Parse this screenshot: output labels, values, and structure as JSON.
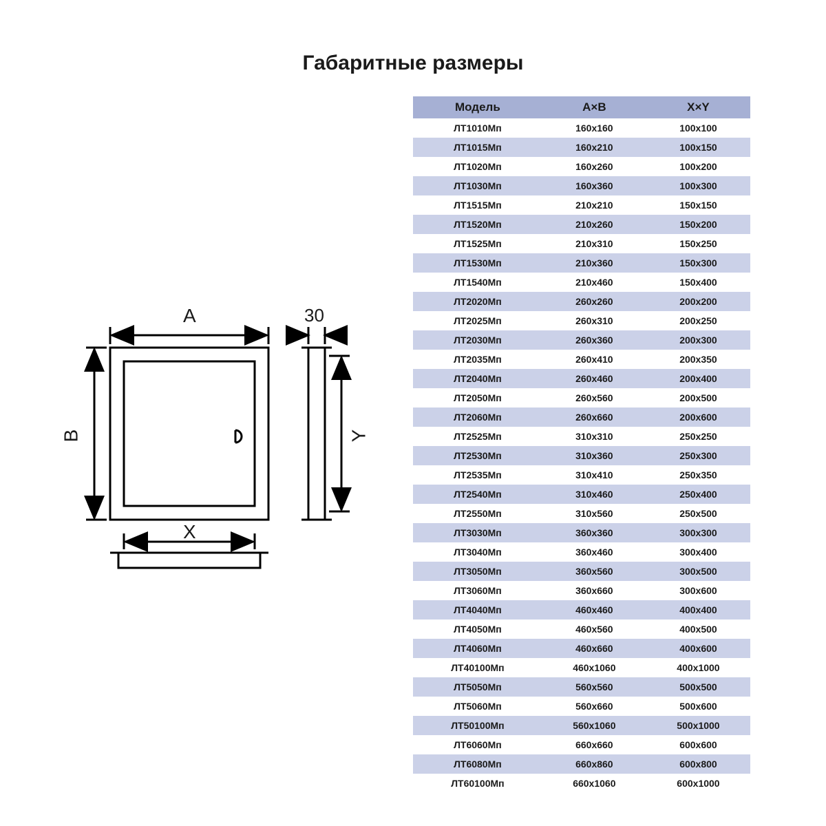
{
  "title": "Габаритные размеры",
  "colors": {
    "header_bg": "#a6b0d4",
    "alt_row_bg": "#cbd1e8",
    "text": "#1a1a1a",
    "stroke": "#000000"
  },
  "table": {
    "columns": [
      "Модель",
      "A×B",
      "X×Y"
    ],
    "rows": [
      [
        "ЛТ1010Мп",
        "160x160",
        "100x100"
      ],
      [
        "ЛТ1015Мп",
        "160x210",
        "100x150"
      ],
      [
        "ЛТ1020Мп",
        "160x260",
        "100x200"
      ],
      [
        "ЛТ1030Мп",
        "160x360",
        "100x300"
      ],
      [
        "ЛТ1515Мп",
        "210x210",
        "150x150"
      ],
      [
        "ЛТ1520Мп",
        "210x260",
        "150x200"
      ],
      [
        "ЛТ1525Мп",
        "210x310",
        "150x250"
      ],
      [
        "ЛТ1530Мп",
        "210x360",
        "150x300"
      ],
      [
        "ЛТ1540Мп",
        "210x460",
        "150x400"
      ],
      [
        "ЛТ2020Мп",
        "260x260",
        "200x200"
      ],
      [
        "ЛТ2025Мп",
        "260x310",
        "200x250"
      ],
      [
        "ЛТ2030Мп",
        "260x360",
        "200x300"
      ],
      [
        "ЛТ2035Мп",
        "260x410",
        "200x350"
      ],
      [
        "ЛТ2040Мп",
        "260x460",
        "200x400"
      ],
      [
        "ЛТ2050Мп",
        "260x560",
        "200x500"
      ],
      [
        "ЛТ2060Мп",
        "260x660",
        "200x600"
      ],
      [
        "ЛТ2525Мп",
        "310x310",
        "250x250"
      ],
      [
        "ЛТ2530Мп",
        "310x360",
        "250x300"
      ],
      [
        "ЛТ2535Мп",
        "310x410",
        "250x350"
      ],
      [
        "ЛТ2540Мп",
        "310x460",
        "250x400"
      ],
      [
        "ЛТ2550Мп",
        "310x560",
        "250x500"
      ],
      [
        "ЛТ3030Мп",
        "360x360",
        "300x300"
      ],
      [
        "ЛТ3040Мп",
        "360x460",
        "300x400"
      ],
      [
        "ЛТ3050Мп",
        "360x560",
        "300x500"
      ],
      [
        "ЛТ3060Мп",
        "360x660",
        "300x600"
      ],
      [
        "ЛТ4040Мп",
        "460x460",
        "400x400"
      ],
      [
        "ЛТ4050Мп",
        "460x560",
        "400x500"
      ],
      [
        "ЛТ4060Мп",
        "460x660",
        "400x600"
      ],
      [
        "ЛТ40100Мп",
        "460x1060",
        "400x1000"
      ],
      [
        "ЛТ5050Мп",
        "560x560",
        "500x500"
      ],
      [
        "ЛТ5060Мп",
        "560x660",
        "500x600"
      ],
      [
        "ЛТ50100Мп",
        "560x1060",
        "500x1000"
      ],
      [
        "ЛТ6060Мп",
        "660x660",
        "600x600"
      ],
      [
        "ЛТ6080Мп",
        "660x860",
        "600x800"
      ],
      [
        "ЛТ60100Мп",
        "660x1060",
        "600x1000"
      ]
    ]
  },
  "diagram": {
    "labels": {
      "A": "A",
      "B": "B",
      "X": "X",
      "Y": "Y",
      "depth": "30"
    },
    "stroke_width": 3
  }
}
